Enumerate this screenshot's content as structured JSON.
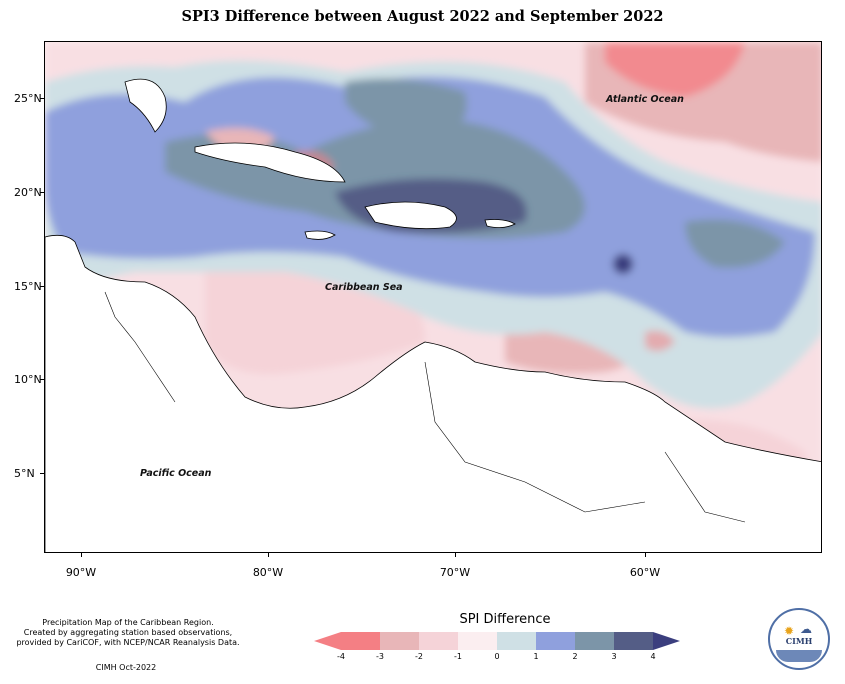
{
  "title": "SPI3 Difference between August 2022 and September 2022",
  "map": {
    "y_ticks": [
      "25°N",
      "20°N",
      "15°N",
      "10°N",
      "5°N"
    ],
    "x_ticks": [
      "90°W",
      "80°W",
      "70°W",
      "60°W"
    ],
    "place_labels": {
      "atlantic": "Atlantic Ocean",
      "caribbean": "Caribbean Sea",
      "pacific": "Pacific Ocean"
    }
  },
  "footer": {
    "description_line1": "Precipitation Map of the Caribbean Region.",
    "description_line2": "Created by aggregating station based observations,",
    "description_line3": "provided by CariCOF, with NCEP/NCAR Reanalysis Data.",
    "credit": "CIMH Oct-2022",
    "logo_text": "CIMH"
  },
  "legend": {
    "title": "SPI Difference",
    "labels": [
      "-4",
      "-3",
      "-2",
      "-1",
      "0",
      "1",
      "2",
      "3",
      "4"
    ],
    "colors": [
      "#f47f84",
      "#e8b6b8",
      "#f5d3d8",
      "#fbeef0",
      "#cfe0e5",
      "#8fa0dd",
      "#7c95a8",
      "#545d86"
    ],
    "end_low_color": "#f47f84",
    "end_high_color": "#3b3e7e"
  }
}
